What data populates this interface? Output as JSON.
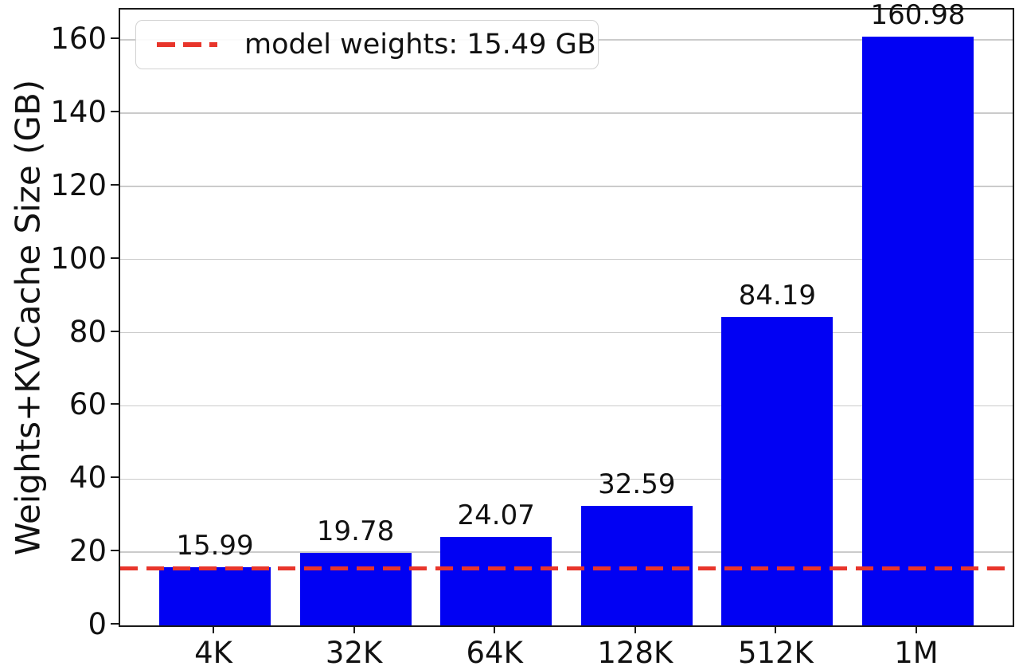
{
  "chart_data": {
    "type": "bar",
    "title": "",
    "categories": [
      "4K",
      "32K",
      "64K",
      "128K",
      "512K",
      "1M"
    ],
    "values": [
      15.99,
      19.78,
      24.07,
      32.59,
      84.19,
      160.98
    ],
    "bar_value_labels": [
      "15.99",
      "19.78",
      "24.07",
      "32.59",
      "84.19",
      "160.98"
    ],
    "xlabel": "",
    "ylabel": "Weights+KVCache Size (GB)",
    "yticks": [
      0,
      20,
      40,
      60,
      80,
      100,
      120,
      140,
      160
    ],
    "ylim": [
      0,
      168.3
    ],
    "grid": true,
    "bar_color": "#0101f3",
    "axis_color": "#1a1a1a",
    "grid_color": "#cbcbcb",
    "reference_line": {
      "value": 15.49,
      "label": "model weights: 15.49 GB",
      "color": "#e8352b",
      "style": "dashed"
    },
    "legend_position": "upper-left"
  }
}
